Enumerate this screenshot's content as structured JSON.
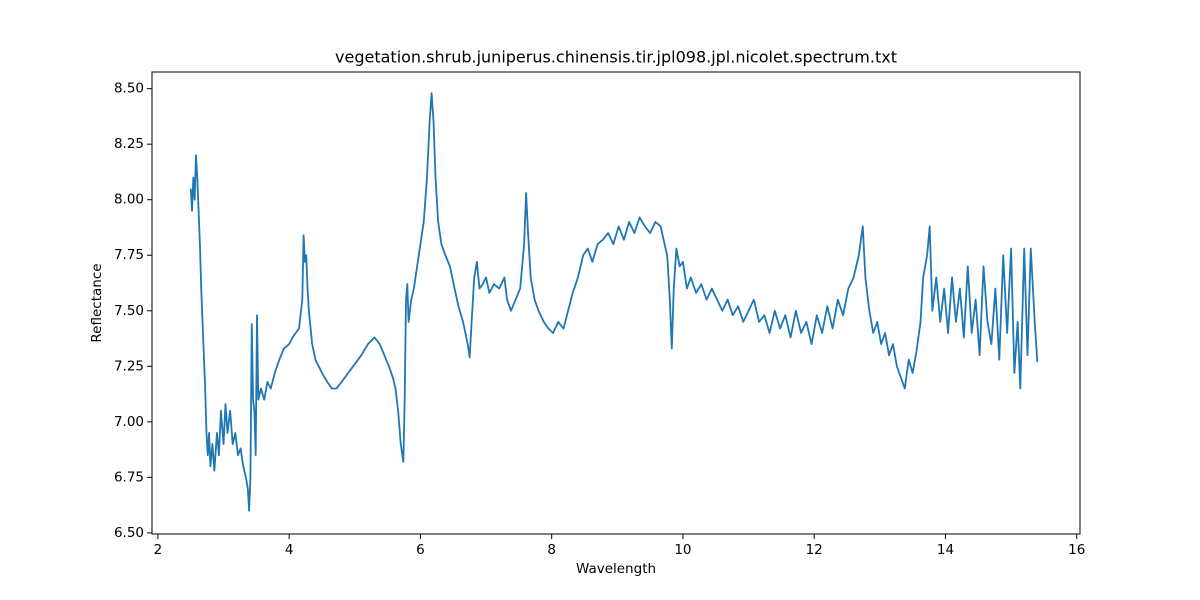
{
  "chart_data": {
    "type": "line",
    "title": "vegetation.shrub.juniperus.chinensis.tir.jpl098.jpl.nicolet.spectrum.txt",
    "xlabel": "Wavelength",
    "ylabel": "Reflectance",
    "color": "#1f77b4",
    "x": [
      2.5,
      2.52,
      2.54,
      2.56,
      2.58,
      2.6,
      2.62,
      2.64,
      2.66,
      2.68,
      2.7,
      2.72,
      2.74,
      2.76,
      2.78,
      2.8,
      2.83,
      2.86,
      2.9,
      2.93,
      2.96,
      3.0,
      3.03,
      3.06,
      3.1,
      3.14,
      3.18,
      3.22,
      3.26,
      3.3,
      3.34,
      3.37,
      3.39,
      3.41,
      3.43,
      3.45,
      3.47,
      3.49,
      3.51,
      3.53,
      3.57,
      3.62,
      3.67,
      3.72,
      3.78,
      3.85,
      3.92,
      4.0,
      4.05,
      4.1,
      4.15,
      4.2,
      4.22,
      4.24,
      4.26,
      4.28,
      4.3,
      4.35,
      4.4,
      4.45,
      4.5,
      4.58,
      4.65,
      4.72,
      4.8,
      4.9,
      5.0,
      5.1,
      5.2,
      5.3,
      5.38,
      5.45,
      5.52,
      5.58,
      5.62,
      5.66,
      5.7,
      5.74,
      5.76,
      5.78,
      5.8,
      5.82,
      5.86,
      5.9,
      5.95,
      6.0,
      6.05,
      6.1,
      6.14,
      6.17,
      6.2,
      6.23,
      6.27,
      6.32,
      6.38,
      6.45,
      6.52,
      6.58,
      6.65,
      6.72,
      6.75,
      6.78,
      6.82,
      6.86,
      6.9,
      6.95,
      7.0,
      7.05,
      7.12,
      7.2,
      7.28,
      7.32,
      7.38,
      7.45,
      7.52,
      7.58,
      7.61,
      7.64,
      7.68,
      7.74,
      7.8,
      7.88,
      7.95,
      8.02,
      8.1,
      8.18,
      8.25,
      8.32,
      8.4,
      8.48,
      8.55,
      8.62,
      8.7,
      8.78,
      8.86,
      8.94,
      9.02,
      9.1,
      9.18,
      9.26,
      9.34,
      9.42,
      9.5,
      9.58,
      9.66,
      9.72,
      9.76,
      9.8,
      9.83,
      9.86,
      9.9,
      9.95,
      10.0,
      10.06,
      10.12,
      10.2,
      10.28,
      10.36,
      10.44,
      10.52,
      10.6,
      10.68,
      10.76,
      10.84,
      10.92,
      11.0,
      11.08,
      11.16,
      11.24,
      11.32,
      11.4,
      11.48,
      11.56,
      11.64,
      11.72,
      11.8,
      11.88,
      11.96,
      12.04,
      12.12,
      12.2,
      12.28,
      12.36,
      12.44,
      12.52,
      12.6,
      12.68,
      12.74,
      12.78,
      12.84,
      12.9,
      12.96,
      13.02,
      13.08,
      13.14,
      13.2,
      13.26,
      13.32,
      13.38,
      13.44,
      13.5,
      13.56,
      13.62,
      13.66,
      13.72,
      13.76,
      13.8,
      13.86,
      13.92,
      13.98,
      14.04,
      14.1,
      14.16,
      14.22,
      14.28,
      14.34,
      14.4,
      14.46,
      14.52,
      14.58,
      14.64,
      14.7,
      14.76,
      14.82,
      14.88,
      14.94,
      15.0,
      15.05,
      15.1,
      15.14,
      15.2,
      15.25,
      15.3,
      15.36,
      15.4
    ],
    "values": [
      8.05,
      7.95,
      8.1,
      8.0,
      8.2,
      8.1,
      7.95,
      7.8,
      7.6,
      7.45,
      7.3,
      7.15,
      6.95,
      6.85,
      6.95,
      6.8,
      6.9,
      6.78,
      6.95,
      6.85,
      7.05,
      6.9,
      7.08,
      6.95,
      7.05,
      6.9,
      6.95,
      6.85,
      6.88,
      6.8,
      6.75,
      6.7,
      6.6,
      6.75,
      7.44,
      7.1,
      7.05,
      6.85,
      7.48,
      7.1,
      7.15,
      7.1,
      7.18,
      7.15,
      7.22,
      7.28,
      7.33,
      7.35,
      7.38,
      7.4,
      7.42,
      7.55,
      7.84,
      7.72,
      7.75,
      7.6,
      7.5,
      7.35,
      7.28,
      7.25,
      7.22,
      7.18,
      7.15,
      7.15,
      7.18,
      7.22,
      7.26,
      7.3,
      7.35,
      7.38,
      7.35,
      7.3,
      7.25,
      7.2,
      7.15,
      7.05,
      6.9,
      6.82,
      7.1,
      7.55,
      7.62,
      7.45,
      7.55,
      7.6,
      7.7,
      7.8,
      7.9,
      8.1,
      8.35,
      8.48,
      8.35,
      8.1,
      7.9,
      7.8,
      7.75,
      7.7,
      7.6,
      7.52,
      7.45,
      7.35,
      7.29,
      7.45,
      7.65,
      7.72,
      7.6,
      7.62,
      7.65,
      7.58,
      7.62,
      7.6,
      7.65,
      7.55,
      7.5,
      7.55,
      7.6,
      7.8,
      8.03,
      7.85,
      7.65,
      7.55,
      7.5,
      7.45,
      7.42,
      7.4,
      7.45,
      7.42,
      7.5,
      7.58,
      7.65,
      7.75,
      7.78,
      7.72,
      7.8,
      7.82,
      7.85,
      7.8,
      7.88,
      7.82,
      7.9,
      7.85,
      7.92,
      7.88,
      7.85,
      7.9,
      7.88,
      7.8,
      7.75,
      7.55,
      7.33,
      7.6,
      7.78,
      7.7,
      7.72,
      7.6,
      7.65,
      7.58,
      7.62,
      7.55,
      7.6,
      7.55,
      7.5,
      7.55,
      7.48,
      7.52,
      7.45,
      7.5,
      7.55,
      7.45,
      7.48,
      7.4,
      7.5,
      7.42,
      7.48,
      7.38,
      7.5,
      7.4,
      7.45,
      7.35,
      7.48,
      7.4,
      7.52,
      7.42,
      7.55,
      7.48,
      7.6,
      7.65,
      7.75,
      7.88,
      7.65,
      7.5,
      7.4,
      7.45,
      7.35,
      7.4,
      7.3,
      7.35,
      7.25,
      7.2,
      7.15,
      7.28,
      7.22,
      7.32,
      7.45,
      7.65,
      7.75,
      7.88,
      7.5,
      7.65,
      7.45,
      7.6,
      7.4,
      7.65,
      7.45,
      7.6,
      7.38,
      7.7,
      7.4,
      7.55,
      7.3,
      7.7,
      7.45,
      7.35,
      7.6,
      7.28,
      7.75,
      7.4,
      7.78,
      7.22,
      7.45,
      7.15,
      7.78,
      7.3,
      7.78,
      7.45,
      7.27
    ],
    "xlim": [
      1.91,
      16.05
    ],
    "ylim": [
      6.495,
      8.575
    ],
    "xticks": [
      2,
      4,
      6,
      8,
      10,
      12,
      14,
      16
    ],
    "yticks": [
      {
        "value": 6.5,
        "label": "6.50"
      },
      {
        "value": 6.75,
        "label": "6.75"
      },
      {
        "value": 7.0,
        "label": "7.00"
      },
      {
        "value": 7.25,
        "label": "7.25"
      },
      {
        "value": 7.5,
        "label": "7.50"
      },
      {
        "value": 7.75,
        "label": "7.75"
      },
      {
        "value": 8.0,
        "label": "8.00"
      },
      {
        "value": 8.25,
        "label": "8.25"
      },
      {
        "value": 8.5,
        "label": "8.50"
      }
    ]
  }
}
